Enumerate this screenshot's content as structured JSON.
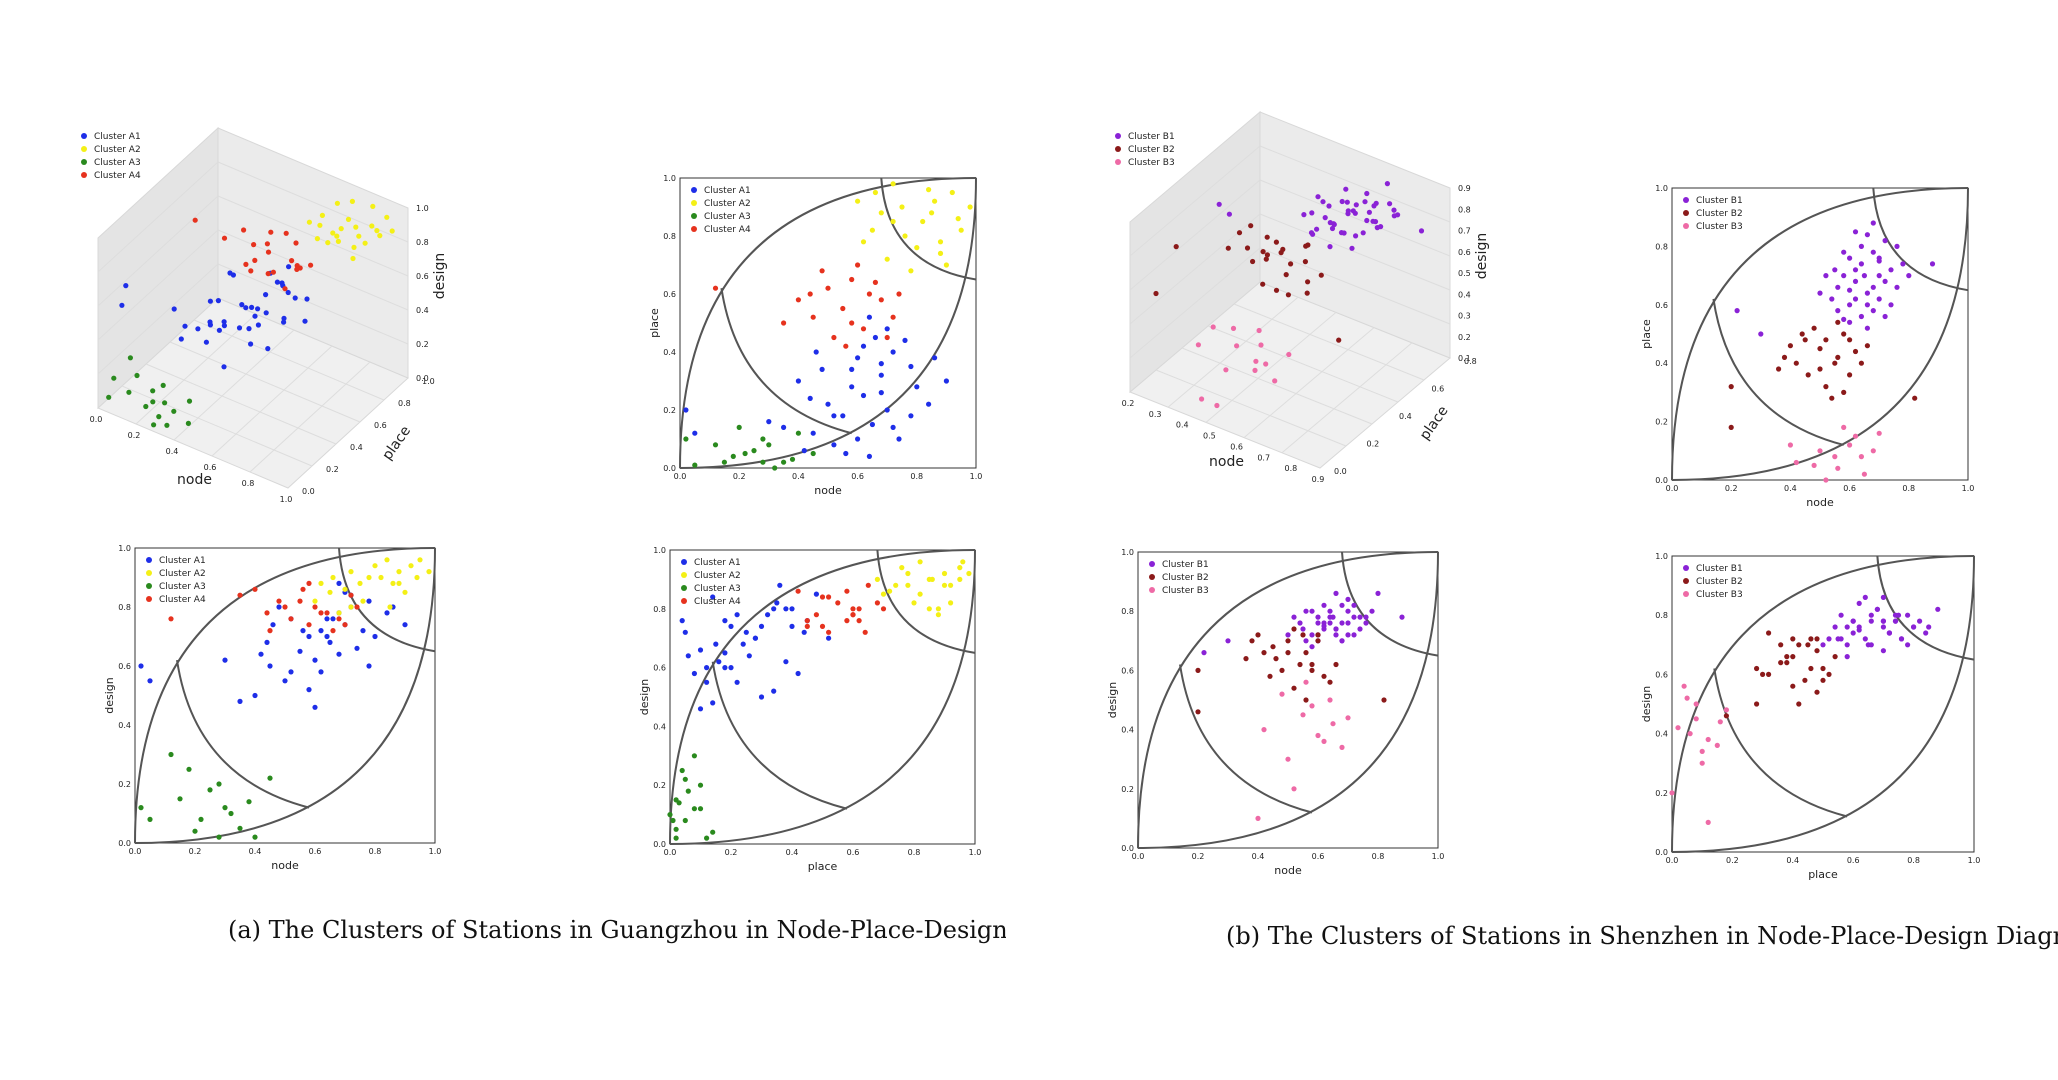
{
  "captions": {
    "a": "(a) The Clusters of Stations in Guangzhou in Node-Place-Design Diagram",
    "b": "(b) The Clusters of Stations in Shenzhen in Node-Place-Design Diagram"
  },
  "colors": {
    "A1": "#1e2ee8",
    "A2": "#f4f016",
    "A3": "#2a8a1e",
    "A4": "#e6321e",
    "B1": "#8a22d6",
    "B2": "#8b1a1a",
    "B3": "#ee6aa6",
    "curve": "#555555",
    "axis": "#222222"
  },
  "chart_data": [
    {
      "id": "gz-3d",
      "type": "scatter",
      "xlabel": "node",
      "ylabel": "place",
      "zlabel": "design",
      "xticks": [
        "0.0",
        "0.2",
        "0.4",
        "0.6",
        "0.8",
        "1.0"
      ],
      "yticks": [
        "0.0",
        "0.2",
        "0.4",
        "0.6",
        "0.8",
        "1.0"
      ],
      "zticks": [
        "0.0",
        "0.2",
        "0.4",
        "0.6",
        "0.8",
        "1.0"
      ],
      "xlim": [
        0,
        1
      ],
      "ylim": [
        0,
        1
      ],
      "zlim": [
        0,
        1
      ],
      "legend_position": "top-left",
      "series": [
        {
          "name": "Cluster A1",
          "color_key": "A1",
          "cluster": "A1"
        },
        {
          "name": "Cluster A2",
          "color_key": "A2",
          "cluster": "A2"
        },
        {
          "name": "Cluster A3",
          "color_key": "A3",
          "cluster": "A3"
        },
        {
          "name": "Cluster A4",
          "color_key": "A4",
          "cluster": "A4"
        }
      ]
    },
    {
      "id": "gz-node-place",
      "type": "scatter",
      "xlabel": "node",
      "ylabel": "place",
      "xticks": [
        "0.0",
        "0.2",
        "0.4",
        "0.6",
        "0.8",
        "1.0"
      ],
      "yticks": [
        "0.0",
        "0.2",
        "0.4",
        "0.6",
        "0.8",
        "1.0"
      ],
      "xlim": [
        0,
        1
      ],
      "ylim": [
        0,
        1
      ],
      "dims": [
        "node",
        "place"
      ],
      "legend_position": "top-left",
      "series": [
        {
          "name": "Cluster A1",
          "color_key": "A1",
          "cluster": "A1"
        },
        {
          "name": "Cluster A2",
          "color_key": "A2",
          "cluster": "A2"
        },
        {
          "name": "Cluster A3",
          "color_key": "A3",
          "cluster": "A3"
        },
        {
          "name": "Cluster A4",
          "color_key": "A4",
          "cluster": "A4"
        }
      ]
    },
    {
      "id": "gz-node-design",
      "type": "scatter",
      "xlabel": "node",
      "ylabel": "design",
      "xticks": [
        "0.0",
        "0.2",
        "0.4",
        "0.6",
        "0.8",
        "1.0"
      ],
      "yticks": [
        "0.0",
        "0.2",
        "0.4",
        "0.6",
        "0.8",
        "1.0"
      ],
      "xlim": [
        0,
        1
      ],
      "ylim": [
        0,
        1
      ],
      "dims": [
        "node",
        "design"
      ],
      "legend_position": "top-left",
      "series": [
        {
          "name": "Cluster A1",
          "color_key": "A1",
          "cluster": "A1"
        },
        {
          "name": "Cluster A2",
          "color_key": "A2",
          "cluster": "A2"
        },
        {
          "name": "Cluster A3",
          "color_key": "A3",
          "cluster": "A3"
        },
        {
          "name": "Cluster A4",
          "color_key": "A4",
          "cluster": "A4"
        }
      ]
    },
    {
      "id": "gz-place-design",
      "type": "scatter",
      "xlabel": "place",
      "ylabel": "design",
      "xticks": [
        "0.0",
        "0.2",
        "0.4",
        "0.6",
        "0.8",
        "1.0"
      ],
      "yticks": [
        "0.0",
        "0.2",
        "0.4",
        "0.6",
        "0.8",
        "1.0"
      ],
      "xlim": [
        0,
        1
      ],
      "ylim": [
        0,
        1
      ],
      "dims": [
        "place",
        "design"
      ],
      "legend_position": "top-left",
      "series": [
        {
          "name": "Cluster A1",
          "color_key": "A1",
          "cluster": "A1"
        },
        {
          "name": "Cluster A2",
          "color_key": "A2",
          "cluster": "A2"
        },
        {
          "name": "Cluster A3",
          "color_key": "A3",
          "cluster": "A3"
        },
        {
          "name": "Cluster A4",
          "color_key": "A4",
          "cluster": "A4"
        }
      ]
    },
    {
      "id": "sz-3d",
      "type": "scatter",
      "xlabel": "node",
      "ylabel": "place",
      "zlabel": "design",
      "xticks": [
        "0.2",
        "0.3",
        "0.4",
        "0.5",
        "0.6",
        "0.7",
        "0.8",
        "0.9"
      ],
      "yticks": [
        "0.0",
        "0.2",
        "0.4",
        "0.6",
        "0.8"
      ],
      "zticks": [
        "0.1",
        "0.2",
        "0.3",
        "0.4",
        "0.5",
        "0.6",
        "0.7",
        "0.8",
        "0.9"
      ],
      "xlim": [
        0.2,
        0.9
      ],
      "ylim": [
        0,
        0.9
      ],
      "zlim": [
        0.1,
        0.9
      ],
      "legend_position": "top-left",
      "series": [
        {
          "name": "Cluster B1",
          "color_key": "B1",
          "cluster": "B1"
        },
        {
          "name": "Cluster B2",
          "color_key": "B2",
          "cluster": "B2"
        },
        {
          "name": "Cluster B3",
          "color_key": "B3",
          "cluster": "B3"
        }
      ]
    },
    {
      "id": "sz-node-place",
      "type": "scatter",
      "xlabel": "node",
      "ylabel": "place",
      "xticks": [
        "0.0",
        "0.2",
        "0.4",
        "0.6",
        "0.8",
        "1.0"
      ],
      "yticks": [
        "0.0",
        "0.2",
        "0.4",
        "0.6",
        "0.8",
        "1.0"
      ],
      "xlim": [
        0,
        1
      ],
      "ylim": [
        0,
        1
      ],
      "dims": [
        "node",
        "place"
      ],
      "legend_position": "top-left",
      "series": [
        {
          "name": "Cluster B1",
          "color_key": "B1",
          "cluster": "B1"
        },
        {
          "name": "Cluster B2",
          "color_key": "B2",
          "cluster": "B2"
        },
        {
          "name": "Cluster B3",
          "color_key": "B3",
          "cluster": "B3"
        }
      ]
    },
    {
      "id": "sz-node-design",
      "type": "scatter",
      "xlabel": "node",
      "ylabel": "design",
      "xticks": [
        "0.0",
        "0.2",
        "0.4",
        "0.6",
        "0.8",
        "1.0"
      ],
      "yticks": [
        "0.0",
        "0.2",
        "0.4",
        "0.6",
        "0.8",
        "1.0"
      ],
      "xlim": [
        0,
        1
      ],
      "ylim": [
        0,
        1
      ],
      "dims": [
        "node",
        "design"
      ],
      "legend_position": "top-left",
      "series": [
        {
          "name": "Cluster B1",
          "color_key": "B1",
          "cluster": "B1"
        },
        {
          "name": "Cluster B2",
          "color_key": "B2",
          "cluster": "B2"
        },
        {
          "name": "Cluster B3",
          "color_key": "B3",
          "cluster": "B3"
        }
      ]
    },
    {
      "id": "sz-place-design",
      "type": "scatter",
      "xlabel": "place",
      "ylabel": "design",
      "xticks": [
        "0.0",
        "0.2",
        "0.4",
        "0.6",
        "0.8",
        "1.0"
      ],
      "yticks": [
        "0.0",
        "0.2",
        "0.4",
        "0.6",
        "0.8",
        "1.0"
      ],
      "xlim": [
        0,
        1
      ],
      "ylim": [
        0,
        1
      ],
      "dims": [
        "place",
        "design"
      ],
      "legend_position": "top-left",
      "series": [
        {
          "name": "Cluster B1",
          "color_key": "B1",
          "cluster": "B1"
        },
        {
          "name": "Cluster B2",
          "color_key": "B2",
          "cluster": "B2"
        },
        {
          "name": "Cluster B3",
          "color_key": "B3",
          "cluster": "B3"
        }
      ]
    }
  ],
  "cluster_points": {
    "A1": [
      [
        0.62,
        0.25,
        0.72
      ],
      [
        0.55,
        0.18,
        0.65
      ],
      [
        0.68,
        0.32,
        0.78
      ],
      [
        0.45,
        0.12,
        0.6
      ],
      [
        0.72,
        0.4,
        0.8
      ],
      [
        0.58,
        0.28,
        0.7
      ],
      [
        0.5,
        0.22,
        0.55
      ],
      [
        0.65,
        0.15,
        0.68
      ],
      [
        0.78,
        0.35,
        0.82
      ],
      [
        0.4,
        0.3,
        0.5
      ],
      [
        0.6,
        0.38,
        0.62
      ],
      [
        0.7,
        0.2,
        0.74
      ],
      [
        0.52,
        0.08,
        0.58
      ],
      [
        0.66,
        0.45,
        0.76
      ],
      [
        0.8,
        0.28,
        0.7
      ],
      [
        0.35,
        0.14,
        0.48
      ],
      [
        0.74,
        0.1,
        0.66
      ],
      [
        0.48,
        0.34,
        0.8
      ],
      [
        0.62,
        0.42,
        0.58
      ],
      [
        0.56,
        0.05,
        0.72
      ],
      [
        0.84,
        0.22,
        0.78
      ],
      [
        0.44,
        0.24,
        0.68
      ],
      [
        0.7,
        0.48,
        0.85
      ],
      [
        0.3,
        0.16,
        0.62
      ],
      [
        0.02,
        0.2,
        0.6
      ],
      [
        0.05,
        0.12,
        0.55
      ],
      [
        0.64,
        0.04,
        0.76
      ],
      [
        0.68,
        0.26,
        0.64
      ],
      [
        0.76,
        0.44,
        0.72
      ],
      [
        0.58,
        0.34,
        0.52
      ],
      [
        0.9,
        0.3,
        0.74
      ],
      [
        0.52,
        0.18,
        0.76
      ],
      [
        0.64,
        0.52,
        0.7
      ],
      [
        0.86,
        0.38,
        0.8
      ],
      [
        0.42,
        0.06,
        0.64
      ],
      [
        0.72,
        0.14,
        0.84
      ],
      [
        0.6,
        0.1,
        0.46
      ],
      [
        0.78,
        0.18,
        0.6
      ],
      [
        0.46,
        0.4,
        0.74
      ],
      [
        0.68,
        0.36,
        0.88
      ]
    ],
    "A2": [
      [
        0.82,
        0.85,
        0.9
      ],
      [
        0.75,
        0.9,
        0.88
      ],
      [
        0.88,
        0.78,
        0.92
      ],
      [
        0.65,
        0.82,
        0.85
      ],
      [
        0.92,
        0.95,
        0.94
      ],
      [
        0.7,
        0.72,
        0.86
      ],
      [
        0.85,
        0.88,
        0.8
      ],
      [
        0.78,
        0.68,
        0.9
      ],
      [
        0.95,
        0.82,
        0.96
      ],
      [
        0.6,
        0.92,
        0.82
      ],
      [
        0.72,
        0.98,
        0.92
      ],
      [
        0.9,
        0.7,
        0.85
      ],
      [
        0.8,
        0.76,
        0.94
      ],
      [
        0.68,
        0.88,
        0.78
      ],
      [
        0.86,
        0.92,
        0.88
      ],
      [
        0.76,
        0.8,
        0.82
      ],
      [
        0.94,
        0.86,
        0.9
      ],
      [
        0.62,
        0.78,
        0.88
      ],
      [
        0.84,
        0.96,
        0.96
      ],
      [
        0.98,
        0.9,
        0.92
      ],
      [
        0.72,
        0.85,
        0.8
      ],
      [
        0.88,
        0.74,
        0.88
      ],
      [
        0.66,
        0.95,
        0.9
      ]
    ],
    "A3": [
      [
        0.15,
        0.02,
        0.15
      ],
      [
        0.22,
        0.05,
        0.08
      ],
      [
        0.28,
        0.1,
        0.2
      ],
      [
        0.35,
        0.02,
        0.05
      ],
      [
        0.3,
        0.08,
        0.12
      ],
      [
        0.18,
        0.04,
        0.25
      ],
      [
        0.4,
        0.12,
        0.02
      ],
      [
        0.25,
        0.06,
        0.18
      ],
      [
        0.32,
        0.0,
        0.1
      ],
      [
        0.2,
        0.14,
        0.04
      ],
      [
        0.45,
        0.05,
        0.22
      ],
      [
        0.12,
        0.08,
        0.3
      ],
      [
        0.38,
        0.03,
        0.14
      ],
      [
        0.05,
        0.01,
        0.08
      ],
      [
        0.02,
        0.1,
        0.12
      ],
      [
        0.28,
        0.02,
        0.02
      ]
    ],
    "A4": [
      [
        0.55,
        0.55,
        0.82
      ],
      [
        0.62,
        0.48,
        0.78
      ],
      [
        0.5,
        0.62,
        0.8
      ],
      [
        0.68,
        0.58,
        0.76
      ],
      [
        0.58,
        0.65,
        0.88
      ],
      [
        0.45,
        0.52,
        0.72
      ],
      [
        0.72,
        0.52,
        0.84
      ],
      [
        0.52,
        0.45,
        0.76
      ],
      [
        0.64,
        0.6,
        0.78
      ],
      [
        0.4,
        0.58,
        0.86
      ],
      [
        0.6,
        0.7,
        0.8
      ],
      [
        0.12,
        0.62,
        0.76
      ],
      [
        0.48,
        0.68,
        0.82
      ],
      [
        0.7,
        0.45,
        0.74
      ],
      [
        0.35,
        0.5,
        0.84
      ],
      [
        0.56,
        0.42,
        0.86
      ],
      [
        0.66,
        0.64,
        0.72
      ],
      [
        0.44,
        0.6,
        0.78
      ],
      [
        0.74,
        0.6,
        0.8
      ],
      [
        0.58,
        0.5,
        0.74
      ]
    ],
    "B1": [
      [
        0.62,
        0.62,
        0.75
      ],
      [
        0.65,
        0.7,
        0.78
      ],
      [
        0.58,
        0.55,
        0.72
      ],
      [
        0.7,
        0.75,
        0.8
      ],
      [
        0.6,
        0.65,
        0.7
      ],
      [
        0.68,
        0.58,
        0.76
      ],
      [
        0.55,
        0.72,
        0.74
      ],
      [
        0.72,
        0.68,
        0.82
      ],
      [
        0.64,
        0.8,
        0.76
      ],
      [
        0.66,
        0.52,
        0.72
      ],
      [
        0.6,
        0.6,
        0.78
      ],
      [
        0.74,
        0.72,
        0.74
      ],
      [
        0.56,
        0.66,
        0.8
      ],
      [
        0.68,
        0.78,
        0.7
      ],
      [
        0.62,
        0.85,
        0.76
      ],
      [
        0.7,
        0.62,
        0.84
      ],
      [
        0.58,
        0.7,
        0.68
      ],
      [
        0.76,
        0.66,
        0.78
      ],
      [
        0.64,
        0.56,
        0.8
      ],
      [
        0.6,
        0.76,
        0.72
      ],
      [
        0.72,
        0.82,
        0.78
      ],
      [
        0.66,
        0.6,
        0.74
      ],
      [
        0.54,
        0.62,
        0.76
      ],
      [
        0.68,
        0.66,
        0.7
      ],
      [
        0.78,
        0.74,
        0.8
      ],
      [
        0.62,
        0.68,
        0.82
      ],
      [
        0.7,
        0.7,
        0.76
      ],
      [
        0.56,
        0.58,
        0.7
      ],
      [
        0.64,
        0.74,
        0.78
      ],
      [
        0.8,
        0.7,
        0.86
      ],
      [
        0.5,
        0.64,
        0.72
      ],
      [
        0.66,
        0.84,
        0.74
      ],
      [
        0.6,
        0.54,
        0.76
      ],
      [
        0.74,
        0.6,
        0.78
      ],
      [
        0.58,
        0.78,
        0.8
      ],
      [
        0.72,
        0.56,
        0.72
      ],
      [
        0.62,
        0.72,
        0.74
      ],
      [
        0.68,
        0.88,
        0.82
      ],
      [
        0.88,
        0.74,
        0.78
      ],
      [
        0.3,
        0.5,
        0.7
      ],
      [
        0.22,
        0.58,
        0.66
      ],
      [
        0.76,
        0.8,
        0.76
      ],
      [
        0.52,
        0.7,
        0.78
      ],
      [
        0.66,
        0.64,
        0.86
      ],
      [
        0.7,
        0.76,
        0.72
      ]
    ],
    "B2": [
      [
        0.5,
        0.45,
        0.7
      ],
      [
        0.55,
        0.4,
        0.72
      ],
      [
        0.45,
        0.48,
        0.68
      ],
      [
        0.58,
        0.5,
        0.62
      ],
      [
        0.42,
        0.4,
        0.66
      ],
      [
        0.6,
        0.36,
        0.7
      ],
      [
        0.48,
        0.52,
        0.6
      ],
      [
        0.52,
        0.32,
        0.74
      ],
      [
        0.62,
        0.44,
        0.58
      ],
      [
        0.4,
        0.46,
        0.72
      ],
      [
        0.56,
        0.54,
        0.66
      ],
      [
        0.46,
        0.36,
        0.64
      ],
      [
        0.64,
        0.4,
        0.56
      ],
      [
        0.38,
        0.42,
        0.7
      ],
      [
        0.54,
        0.28,
        0.62
      ],
      [
        0.6,
        0.48,
        0.72
      ],
      [
        0.44,
        0.5,
        0.58
      ],
      [
        0.5,
        0.38,
        0.66
      ],
      [
        0.58,
        0.3,
        0.6
      ],
      [
        0.36,
        0.38,
        0.64
      ],
      [
        0.66,
        0.46,
        0.62
      ],
      [
        0.52,
        0.48,
        0.54
      ],
      [
        0.2,
        0.18,
        0.46
      ],
      [
        0.82,
        0.28,
        0.5
      ],
      [
        0.2,
        0.32,
        0.6
      ],
      [
        0.56,
        0.42,
        0.5
      ]
    ],
    "B3": [
      [
        0.55,
        0.08,
        0.45
      ],
      [
        0.6,
        0.12,
        0.38
      ],
      [
        0.48,
        0.05,
        0.52
      ],
      [
        0.65,
        0.02,
        0.42
      ],
      [
        0.62,
        0.15,
        0.36
      ],
      [
        0.5,
        0.1,
        0.3
      ],
      [
        0.58,
        0.18,
        0.48
      ],
      [
        0.42,
        0.06,
        0.4
      ],
      [
        0.68,
        0.1,
        0.34
      ],
      [
        0.52,
        0.0,
        0.2
      ],
      [
        0.7,
        0.16,
        0.44
      ],
      [
        0.4,
        0.12,
        0.1
      ],
      [
        0.56,
        0.04,
        0.56
      ],
      [
        0.64,
        0.08,
        0.5
      ]
    ]
  }
}
